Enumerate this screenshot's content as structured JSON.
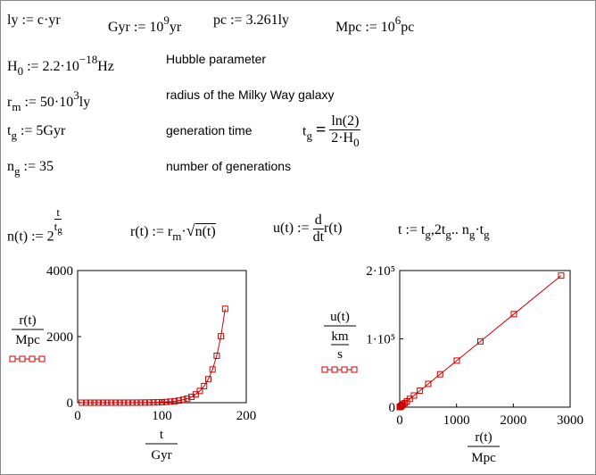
{
  "worksheet": {
    "ly": "ly := c·yr",
    "gyr": [
      "Gyr := 10",
      "9",
      "yr"
    ],
    "pc": "pc := 3.261ly",
    "mpc": [
      "Mpc := 10",
      "6",
      "pc"
    ],
    "h0": [
      "H",
      "0",
      " := 2.2·10",
      "−18",
      "Hz"
    ],
    "h0_note": "Hubble parameter",
    "rm": [
      "r",
      "m",
      " := 50·10",
      "3",
      "ly"
    ],
    "rm_note": "radius of the Milky Way galaxy",
    "tg": [
      "t",
      "g",
      " := 5Gyr"
    ],
    "tg_note": "generation time",
    "tg_eval": {
      "lhs": [
        "t",
        "g"
      ],
      "op": "=",
      "num": "ln(2)",
      "den": [
        "2·H",
        "0"
      ]
    },
    "ng": [
      "n",
      "g",
      " := 35"
    ],
    "ng_note": "number of generations",
    "n_def": {
      "lhs": "n(t) := 2",
      "num": "t",
      "den": [
        "t",
        "g"
      ]
    },
    "r_def": [
      "r(t) := r",
      "m",
      "·",
      "n(t)"
    ],
    "u_def": {
      "lhs": "u(t) := ",
      "num": "d",
      "den": "dt",
      "rhs": "r(t)"
    },
    "t_range": [
      "t := t",
      "g",
      ",2t",
      "g",
      ".. n",
      "g",
      "·t",
      "g"
    ]
  },
  "plots": [
    {
      "type": "line",
      "color": "#cc0000",
      "x": [
        5,
        10,
        15,
        20,
        25,
        30,
        35,
        40,
        45,
        50,
        55,
        60,
        65,
        70,
        75,
        80,
        85,
        90,
        95,
        100,
        105,
        110,
        115,
        120,
        125,
        130,
        135,
        140,
        145,
        150,
        155,
        160,
        165,
        170,
        175
      ],
      "y": [
        0.02168,
        0.03067,
        0.04337,
        0.06133,
        0.08674,
        0.12266,
        0.17347,
        0.24532,
        0.34694,
        0.49065,
        0.69389,
        0.98129,
        1.38778,
        1.96259,
        2.77555,
        3.92517,
        5.5511,
        7.8503,
        11.102,
        15.701,
        22.204,
        31.401,
        44.409,
        62.803,
        88.818,
        125.61,
        177.64,
        251.21,
        355.27,
        502.42,
        710.54,
        1004.8,
        1421.1,
        2009.7,
        2842.2
      ],
      "xlim": [
        0,
        200
      ],
      "xticks": [
        0,
        100,
        200
      ],
      "ylim": [
        0,
        4000
      ],
      "yticks": [
        0,
        2000,
        4000
      ],
      "x_label": {
        "num": "t",
        "den": "Gyr"
      },
      "y_label": {
        "num": "r(t)",
        "den": "Mpc"
      }
    },
    {
      "type": "line",
      "color": "#cc0000",
      "x": [
        0.02168,
        0.03067,
        0.04337,
        0.06133,
        0.08674,
        0.12266,
        0.17347,
        0.24532,
        0.34694,
        0.49065,
        0.69389,
        0.98129,
        1.38778,
        1.96259,
        2.77555,
        3.92517,
        5.5511,
        7.8503,
        11.102,
        15.701,
        22.204,
        31.401,
        44.409,
        62.803,
        88.818,
        125.61,
        177.64,
        251.21,
        355.27,
        502.42,
        710.54,
        1004.8,
        1421.1,
        2009.7,
        2842.2
      ],
      "y": [
        1.469,
        2.078,
        2.939,
        4.156,
        5.878,
        8.312,
        11.755,
        16.624,
        23.51,
        33.248,
        47.021,
        66.496,
        94.04,
        132.99,
        188.08,
        265.99,
        376.17,
        531.97,
        752.32,
        1064,
        1504.6,
        2127.9,
        3009.3,
        4255.8,
        6018.6,
        8512,
        12038,
        17023,
        24075,
        34046,
        48149,
        68091,
        96300,
        136186,
        192600
      ],
      "xlim": [
        0,
        3000
      ],
      "xticks": [
        0,
        1000,
        2000,
        3000
      ],
      "ylim": [
        0,
        200000
      ],
      "yticks": [
        0,
        {
          "value": 100000,
          "label": "1·10⁵"
        },
        {
          "value": 200000,
          "label": "2·10⁵"
        }
      ],
      "x_label": {
        "num": "r(t)",
        "den": "Mpc"
      },
      "y_label": {
        "num": "u(t)",
        "den_num": "km",
        "den_den": "s"
      }
    }
  ]
}
